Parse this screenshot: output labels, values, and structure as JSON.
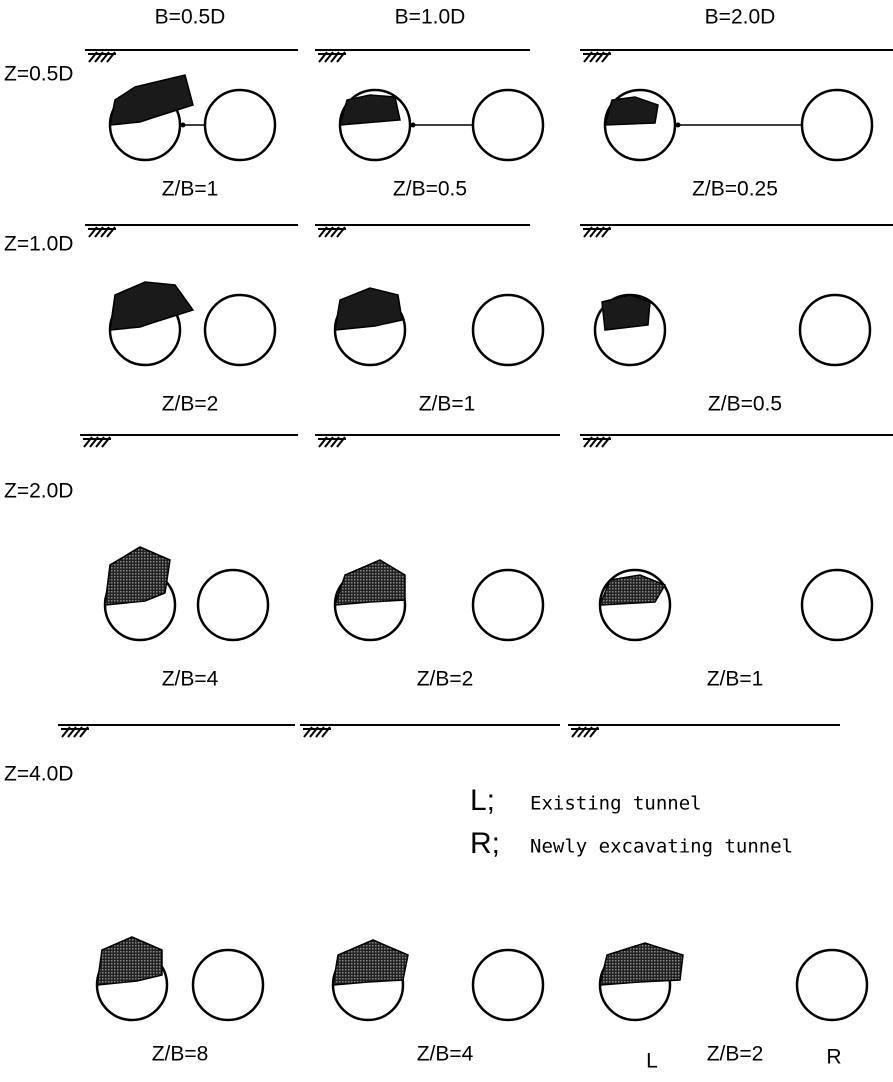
{
  "columns": [
    "B=0.5D",
    "B=1.0D",
    "B=2.0D"
  ],
  "rows": [
    {
      "label": "Z=0.5D",
      "panels": [
        "Z/B=1",
        "Z/B=0.5",
        "Z/B=0.25"
      ]
    },
    {
      "label": "Z=1.0D",
      "panels": [
        "Z/B=2",
        "Z/B=1",
        "Z/B=0.5"
      ]
    },
    {
      "label": "Z=2.0D",
      "panels": [
        "Z/B=4",
        "Z/B=2",
        "Z/B=1"
      ]
    },
    {
      "label": "Z=4.0D",
      "panels": [
        "Z/B=8",
        "Z/B=4",
        "Z/B=2"
      ]
    }
  ],
  "legend": [
    {
      "key": "L;",
      "text": "Existing tunnel"
    },
    {
      "key": "R;",
      "text": "Newly excavating tunnel"
    }
  ],
  "tunnel_labels": [
    "L",
    "R"
  ]
}
